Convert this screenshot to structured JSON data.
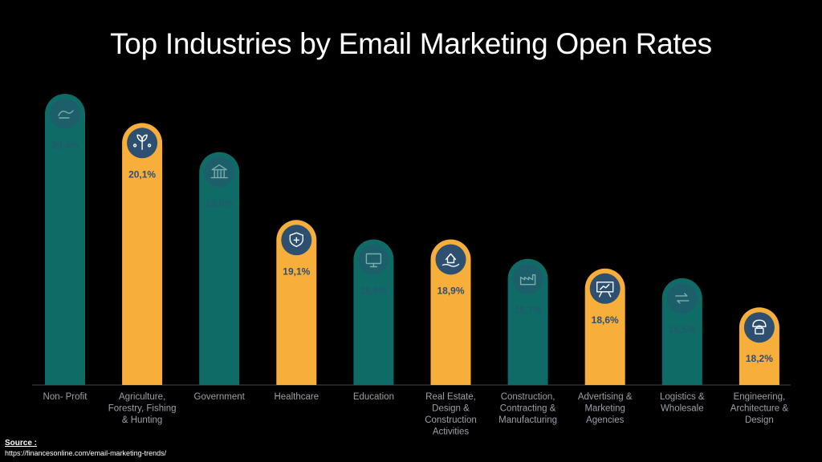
{
  "colors": {
    "teal": "#0f6b66",
    "orange": "#f7ae3b",
    "icon_fill": "#2d4f70",
    "label_dark": "#2d4f70",
    "axis_text": "#9aa0a6"
  },
  "source": {
    "label": "Source :",
    "url": "https://financesonline.com/email-marketing-trends/"
  },
  "chart_data": {
    "type": "bar",
    "title": "Top Industries by Email Marketing Open Rates",
    "ylim": [
      0,
      21
    ],
    "grid": false,
    "categories": [
      [
        "Non- Profit"
      ],
      [
        "Agriculture,",
        "Forestry, Fishing",
        "& Hunting"
      ],
      [
        "Government"
      ],
      [
        "Healthcare"
      ],
      [
        "Education"
      ],
      [
        "Real Estate,",
        "Design &",
        "Construction",
        "Activities"
      ],
      [
        "Construction,",
        "Contracting &",
        "Manufacturing"
      ],
      [
        "Advertising &",
        "Marketing",
        "Agencies"
      ],
      [
        "Logistics &",
        "Wholesale"
      ],
      [
        "Engineering,",
        "Architecture &",
        "Design"
      ]
    ],
    "values": [
      20.4,
      20.1,
      19.8,
      19.1,
      18.9,
      18.9,
      18.7,
      18.6,
      18.5,
      18.2
    ],
    "value_labels": [
      "20,4%",
      "20,1%",
      "19,8%",
      "19,1%",
      "18,9%",
      "18,9%",
      "18,7%",
      "18,6%",
      "18,5%",
      "18,2%"
    ],
    "bar_colors": [
      "teal",
      "orange",
      "teal",
      "orange",
      "teal",
      "orange",
      "teal",
      "orange",
      "teal",
      "orange"
    ],
    "icons": [
      "nonprofit-handshake-icon",
      "plant-network-icon",
      "government-building-icon",
      "health-shield-icon",
      "monitor-icon",
      "house-in-hand-icon",
      "factory-icon",
      "presentation-board-icon",
      "logistics-arrows-icon",
      "engineer-helmet-icon"
    ]
  }
}
